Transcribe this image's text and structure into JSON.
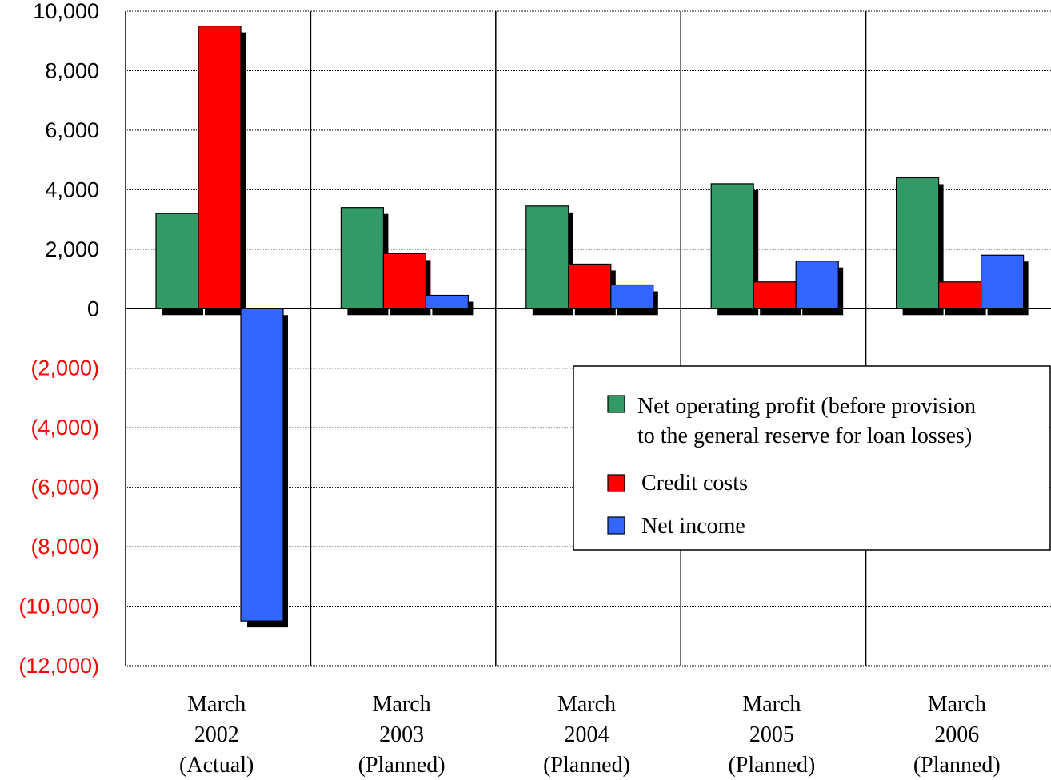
{
  "chart_data": {
    "type": "bar",
    "title": "",
    "xlabel": "",
    "ylabel": "",
    "ylim": [
      -12000,
      10000
    ],
    "yticks": [
      {
        "value": 10000,
        "label": "10,000"
      },
      {
        "value": 8000,
        "label": "8,000"
      },
      {
        "value": 6000,
        "label": "6,000"
      },
      {
        "value": 4000,
        "label": "4,000"
      },
      {
        "value": 2000,
        "label": "2,000"
      },
      {
        "value": 0,
        "label": "0"
      },
      {
        "value": -2000,
        "label": "(2,000)"
      },
      {
        "value": -4000,
        "label": "(4,000)"
      },
      {
        "value": -6000,
        "label": "(6,000)"
      },
      {
        "value": -8000,
        "label": "(8,000)"
      },
      {
        "value": -10000,
        "label": "(10,000)"
      },
      {
        "value": -12000,
        "label": "(12,000)"
      }
    ],
    "positive_tick_color": "#000000",
    "negative_tick_color": "#ff0000",
    "grid": true,
    "legend_position": "right-middle",
    "categories": [
      [
        "March",
        "2002",
        "(Actual)"
      ],
      [
        "March",
        "2003",
        "(Planned)"
      ],
      [
        "March",
        "2004",
        "(Planned)"
      ],
      [
        "March",
        "2005",
        "(Planned)"
      ],
      [
        "March",
        "2006",
        "(Planned)"
      ]
    ],
    "series": [
      {
        "name": [
          "Net operating profit (before provision",
          "to the general reserve for loan losses)"
        ],
        "color": "#339966",
        "values": [
          3200,
          3400,
          3450,
          4200,
          4400
        ]
      },
      {
        "name": [
          "Credit costs"
        ],
        "color": "#ff0000",
        "values": [
          9500,
          1850,
          1500,
          900,
          900
        ]
      },
      {
        "name": [
          "Net income"
        ],
        "color": "#3366ff",
        "values": [
          -10500,
          450,
          800,
          1600,
          1800
        ]
      }
    ]
  }
}
